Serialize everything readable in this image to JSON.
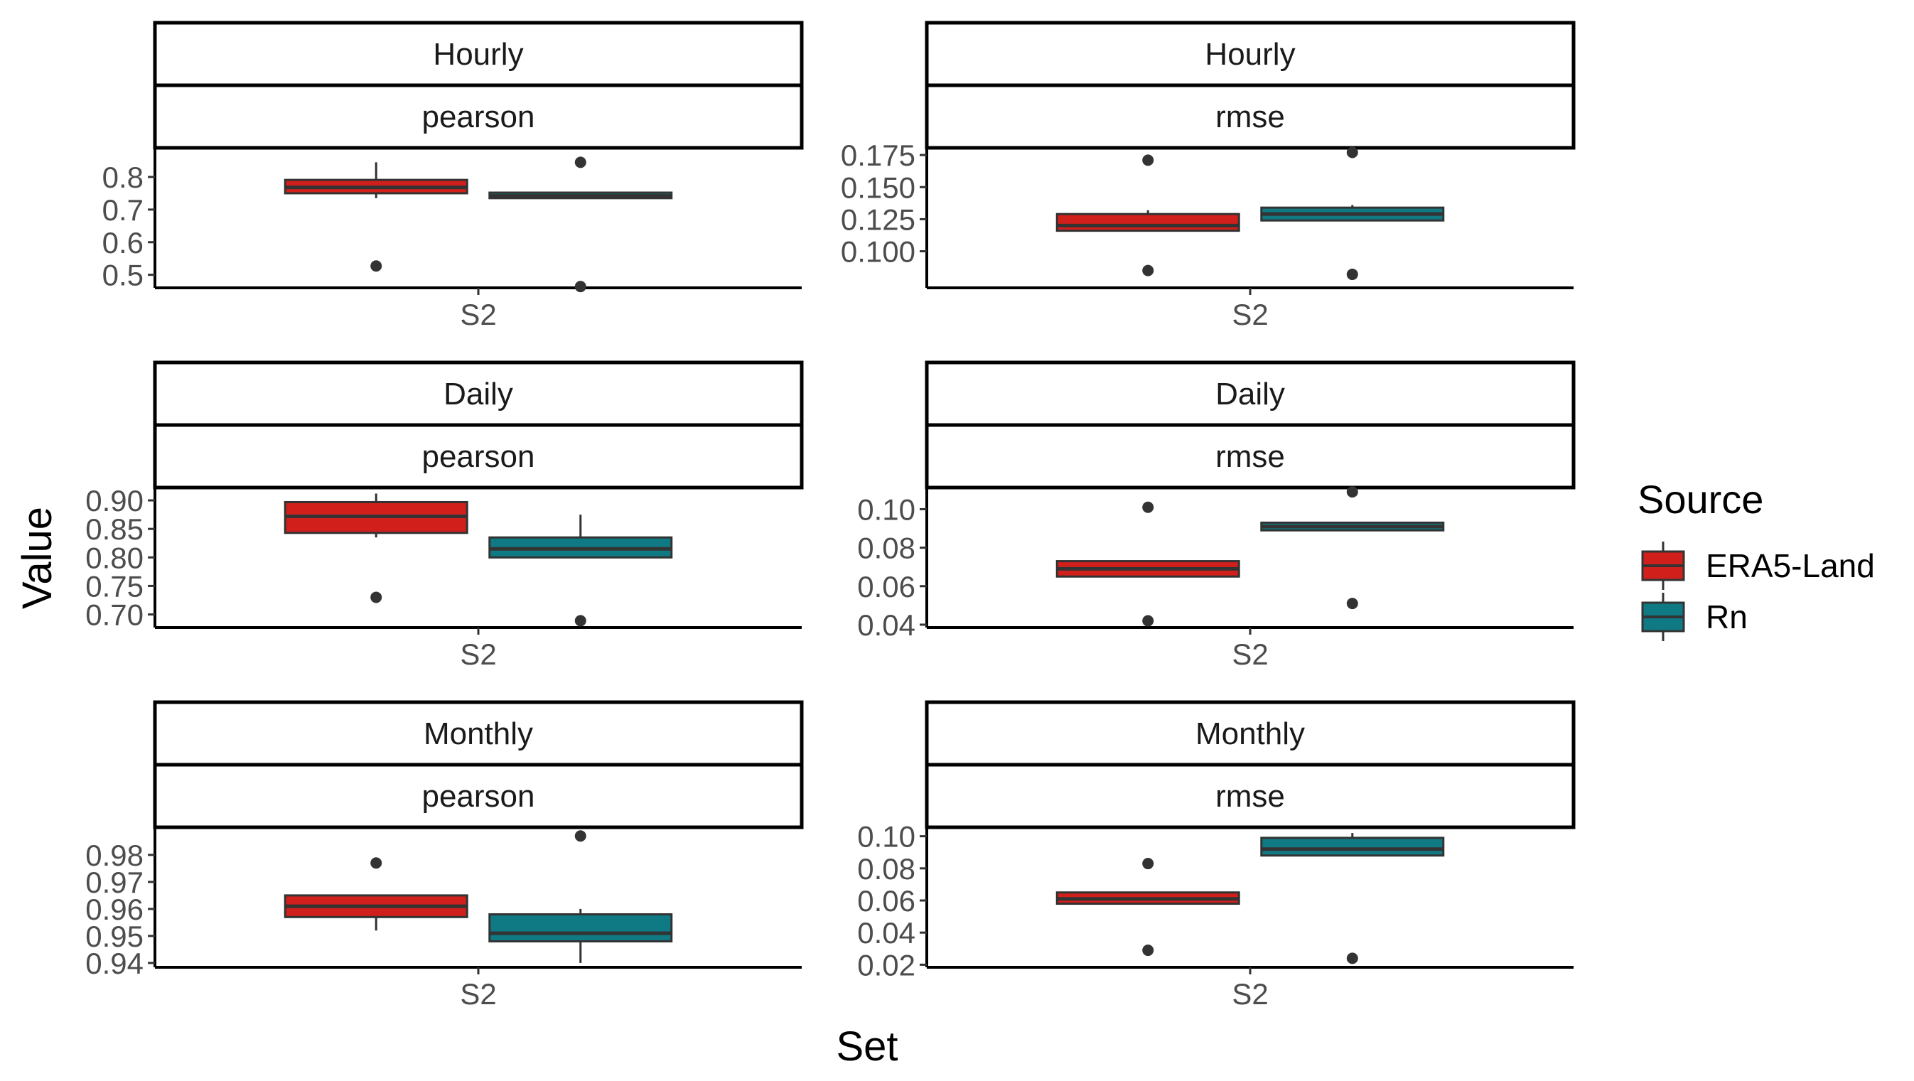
{
  "chart_data": {
    "type": "boxplot",
    "xlabel": "Set",
    "ylabel": "Value",
    "legend": {
      "title": "Source",
      "placement": "right",
      "entries": [
        {
          "name": "ERA5-Land",
          "color": "#d1201c"
        },
        {
          "name": "Rn",
          "color": "#0f7a83"
        }
      ]
    },
    "colors": {
      "ERA5-Land": "#d1201c",
      "Rn": "#0f7a83",
      "median": "#333333",
      "outline": "#333333"
    },
    "panels": [
      {
        "strip_top": "Hourly",
        "strip_bottom": "pearson",
        "x_category": "S2",
        "ylim": [
          0.46,
          0.885
        ],
        "yticks": [
          {
            "v": 0.5,
            "label": "0.5"
          },
          {
            "v": 0.6,
            "label": "0.6"
          },
          {
            "v": 0.7,
            "label": "0.7"
          },
          {
            "v": 0.8,
            "label": "0.8"
          }
        ],
        "boxes": [
          {
            "source": "ERA5-Land",
            "whisker_low": 0.735,
            "q1": 0.75,
            "median": 0.768,
            "q3": 0.791,
            "whisker_high": 0.845,
            "outliers": [
              0.527
            ]
          },
          {
            "source": "Rn",
            "whisker_low": 0.735,
            "q1": 0.735,
            "median": 0.742,
            "q3": 0.752,
            "whisker_high": 0.752,
            "outliers": [
              0.845,
              0.464
            ]
          }
        ]
      },
      {
        "strip_top": "Hourly",
        "strip_bottom": "rmse",
        "x_category": "S2",
        "ylim": [
          0.0715,
          0.1795
        ],
        "yticks": [
          {
            "v": 0.1,
            "label": "0.100"
          },
          {
            "v": 0.125,
            "label": "0.125"
          },
          {
            "v": 0.15,
            "label": "0.150"
          },
          {
            "v": 0.175,
            "label": "0.175"
          }
        ],
        "boxes": [
          {
            "source": "ERA5-Land",
            "whisker_low": 0.116,
            "q1": 0.116,
            "median": 0.12,
            "q3": 0.129,
            "whisker_high": 0.132,
            "outliers": [
              0.171,
              0.085
            ]
          },
          {
            "source": "Rn",
            "whisker_low": 0.124,
            "q1": 0.124,
            "median": 0.129,
            "q3": 0.134,
            "whisker_high": 0.136,
            "outliers": [
              0.177,
              0.082
            ]
          }
        ]
      },
      {
        "strip_top": "Daily",
        "strip_bottom": "pearson",
        "x_category": "S2",
        "ylim": [
          0.677,
          0.92
        ],
        "yticks": [
          {
            "v": 0.7,
            "label": "0.70"
          },
          {
            "v": 0.75,
            "label": "0.75"
          },
          {
            "v": 0.8,
            "label": "0.80"
          },
          {
            "v": 0.85,
            "label": "0.85"
          },
          {
            "v": 0.9,
            "label": "0.90"
          }
        ],
        "boxes": [
          {
            "source": "ERA5-Land",
            "whisker_low": 0.835,
            "q1": 0.843,
            "median": 0.872,
            "q3": 0.897,
            "whisker_high": 0.912,
            "outliers": [
              0.73
            ]
          },
          {
            "source": "Rn",
            "whisker_low": 0.8,
            "q1": 0.8,
            "median": 0.815,
            "q3": 0.835,
            "whisker_high": 0.875,
            "outliers": [
              0.689
            ]
          }
        ]
      },
      {
        "strip_top": "Daily",
        "strip_bottom": "rmse",
        "x_category": "S2",
        "ylim": [
          0.0385,
          0.1105
        ],
        "yticks": [
          {
            "v": 0.04,
            "label": "0.04"
          },
          {
            "v": 0.06,
            "label": "0.06"
          },
          {
            "v": 0.08,
            "label": "0.08"
          },
          {
            "v": 0.1,
            "label": "0.10"
          }
        ],
        "boxes": [
          {
            "source": "ERA5-Land",
            "whisker_low": 0.065,
            "q1": 0.065,
            "median": 0.069,
            "q3": 0.073,
            "whisker_high": 0.073,
            "outliers": [
              0.101,
              0.042
            ]
          },
          {
            "source": "Rn",
            "whisker_low": 0.089,
            "q1": 0.089,
            "median": 0.091,
            "q3": 0.093,
            "whisker_high": 0.093,
            "outliers": [
              0.109,
              0.051
            ]
          }
        ]
      },
      {
        "strip_top": "Monthly",
        "strip_bottom": "pearson",
        "x_category": "S2",
        "ylim": [
          0.9384,
          0.9897
        ],
        "yticks": [
          {
            "v": 0.94,
            "label": "0.94"
          },
          {
            "v": 0.95,
            "label": "0.95"
          },
          {
            "v": 0.96,
            "label": "0.96"
          },
          {
            "v": 0.97,
            "label": "0.97"
          },
          {
            "v": 0.98,
            "label": "0.98"
          }
        ],
        "boxes": [
          {
            "source": "ERA5-Land",
            "whisker_low": 0.952,
            "q1": 0.957,
            "median": 0.961,
            "q3": 0.965,
            "whisker_high": 0.965,
            "outliers": [
              0.977
            ]
          },
          {
            "source": "Rn",
            "whisker_low": 0.94,
            "q1": 0.948,
            "median": 0.951,
            "q3": 0.958,
            "whisker_high": 0.96,
            "outliers": [
              0.987
            ]
          }
        ]
      },
      {
        "strip_top": "Monthly",
        "strip_bottom": "rmse",
        "x_category": "S2",
        "ylim": [
          0.0184,
          0.1047
        ],
        "yticks": [
          {
            "v": 0.02,
            "label": "0.02"
          },
          {
            "v": 0.04,
            "label": "0.04"
          },
          {
            "v": 0.06,
            "label": "0.06"
          },
          {
            "v": 0.08,
            "label": "0.08"
          },
          {
            "v": 0.1,
            "label": "0.10"
          }
        ],
        "boxes": [
          {
            "source": "ERA5-Land",
            "whisker_low": 0.058,
            "q1": 0.058,
            "median": 0.061,
            "q3": 0.065,
            "whisker_high": 0.065,
            "outliers": [
              0.083,
              0.029
            ]
          },
          {
            "source": "Rn",
            "whisker_low": 0.088,
            "q1": 0.088,
            "median": 0.092,
            "q3": 0.099,
            "whisker_high": 0.102,
            "outliers": [
              0.024
            ]
          }
        ]
      }
    ]
  }
}
